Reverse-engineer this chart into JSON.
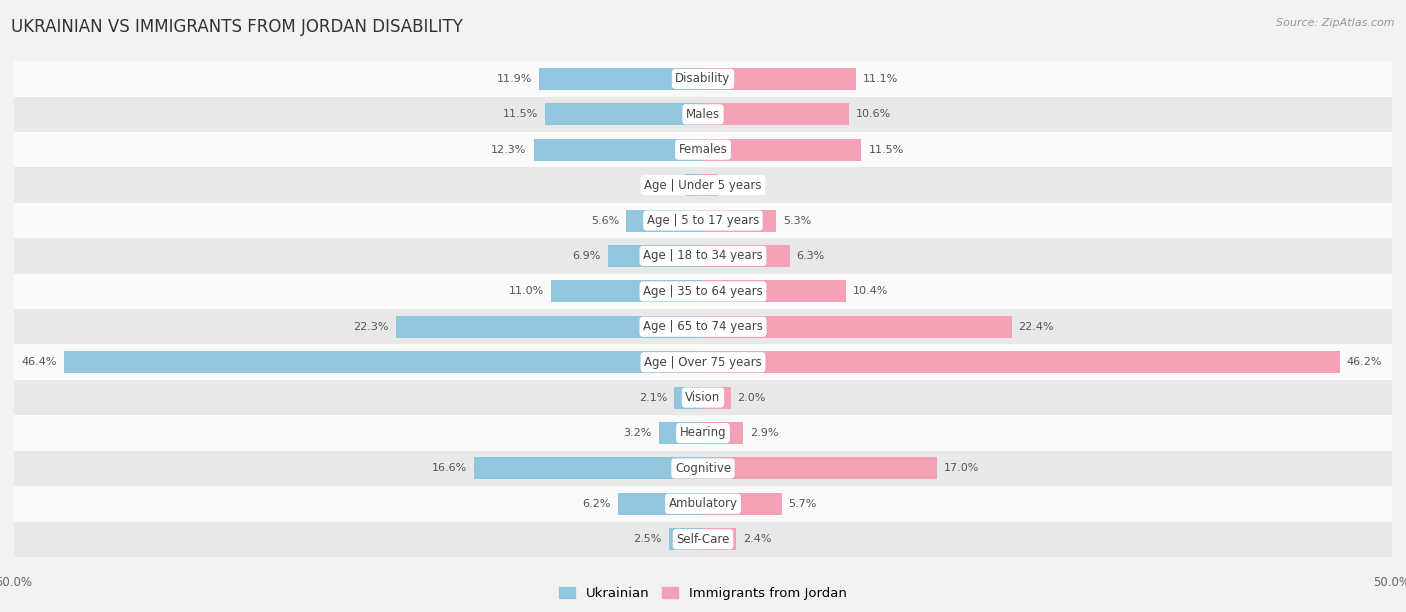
{
  "title": "UKRAINIAN VS IMMIGRANTS FROM JORDAN DISABILITY",
  "source": "Source: ZipAtlas.com",
  "categories": [
    "Disability",
    "Males",
    "Females",
    "Age | Under 5 years",
    "Age | 5 to 17 years",
    "Age | 18 to 34 years",
    "Age | 35 to 64 years",
    "Age | 65 to 74 years",
    "Age | Over 75 years",
    "Vision",
    "Hearing",
    "Cognitive",
    "Ambulatory",
    "Self-Care"
  ],
  "ukrainian": [
    11.9,
    11.5,
    12.3,
    1.3,
    5.6,
    6.9,
    11.0,
    22.3,
    46.4,
    2.1,
    3.2,
    16.6,
    6.2,
    2.5
  ],
  "jordan": [
    11.1,
    10.6,
    11.5,
    1.1,
    5.3,
    6.3,
    10.4,
    22.4,
    46.2,
    2.0,
    2.9,
    17.0,
    5.7,
    2.4
  ],
  "max_val": 50.0,
  "ukrainian_color": "#92C5DE",
  "jordan_color": "#F4A0B5",
  "bg_color": "#f2f2f2",
  "row_bg_light": "#fafafa",
  "row_bg_dark": "#e8e8e8",
  "label_fontsize": 8.5,
  "title_fontsize": 12,
  "value_fontsize": 8
}
